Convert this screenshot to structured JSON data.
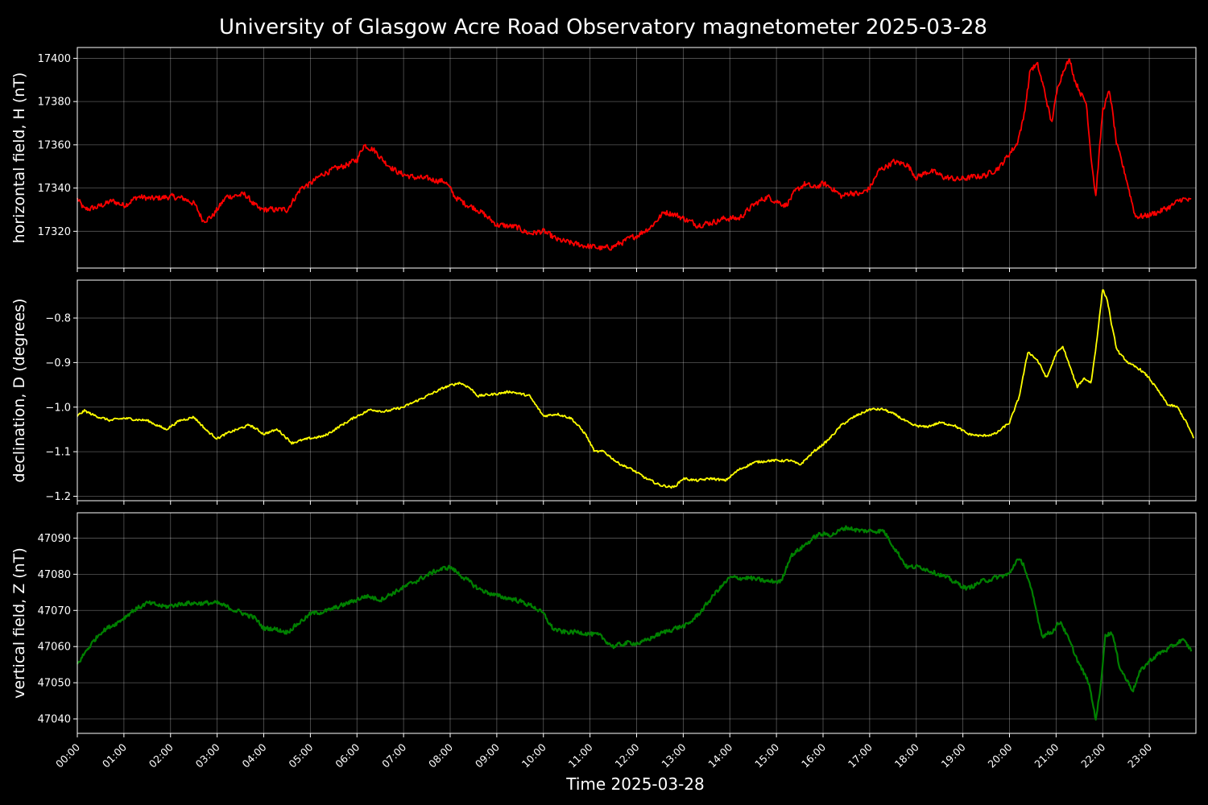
{
  "chart_data": {
    "type": "line",
    "title": "University of Glasgow Acre Road Observatory magnetometer 2025-03-28",
    "xlabel": "Time 2025-03-28",
    "x_tick_labels": [
      "00:00",
      "01:00",
      "02:00",
      "03:00",
      "04:00",
      "05:00",
      "06:00",
      "07:00",
      "08:00",
      "09:00",
      "10:00",
      "11:00",
      "12:00",
      "13:00",
      "14:00",
      "15:00",
      "16:00",
      "17:00",
      "18:00",
      "19:00",
      "20:00",
      "21:00",
      "22:00",
      "23:00"
    ],
    "xlim_hours": [
      0,
      24
    ],
    "grid": true,
    "background": "#000000",
    "panels": [
      {
        "ylabel": "horizontal field, H (nT)",
        "color": "#ff0000",
        "ylim": [
          17303,
          17405
        ],
        "yticks": [
          17320,
          17340,
          17360,
          17380,
          17400
        ],
        "ytick_labels": [
          "17320",
          "17340",
          "17360",
          "17380",
          "17400"
        ],
        "noise": 1.5,
        "series": [
          {
            "x": [
              0,
              0.15,
              0.4,
              0.75,
              1.0,
              1.3,
              1.6,
              2.0,
              2.3,
              2.5,
              2.7,
              2.9,
              3.2,
              3.6,
              3.9,
              4.2,
              4.5,
              4.8,
              5.0,
              5.3,
              5.7,
              6.0,
              6.15,
              6.35,
              6.6,
              6.9,
              7.2,
              7.6,
              7.9,
              8.1,
              8.3,
              8.6,
              9.0,
              9.4,
              9.7,
              10.0,
              10.3,
              10.7,
              11.0,
              11.3,
              11.5,
              11.8,
              12.0,
              12.3,
              12.6,
              12.8,
              13.0,
              13.3,
              13.6,
              13.9,
              14.2,
              14.5,
              14.8,
              15.0,
              15.2,
              15.4,
              15.6,
              15.8,
              16.0,
              16.2,
              16.4,
              16.6,
              16.8,
              17.0,
              17.2,
              17.5,
              17.8,
              18.0,
              18.3,
              18.6,
              18.9,
              19.2,
              19.5,
              19.8,
              20.0,
              20.15,
              20.3,
              20.45,
              20.6,
              20.75,
              20.9,
              21.05,
              21.2,
              21.3,
              21.4,
              21.55,
              21.65,
              21.75,
              21.85,
              22.0,
              22.15,
              22.3,
              22.5,
              22.7,
              22.9,
              23.2,
              23.5,
              23.7,
              23.9
            ],
            "y": [
              17335,
              17330,
              17331,
              17334,
              17332,
              17336,
              17335,
              17336,
              17335,
              17333,
              17325,
              17327,
              17336,
              17337,
              17330,
              17330,
              17330,
              17340,
              17342,
              17347,
              17350,
              17353,
              17360,
              17358,
              17352,
              17347,
              17345,
              17344,
              17343,
              17336,
              17333,
              17330,
              17323,
              17322,
              17319,
              17320,
              17316,
              17314,
              17313,
              17312,
              17313,
              17316,
              17318,
              17322,
              17329,
              17328,
              17326,
              17323,
              17324,
              17326,
              17326,
              17332,
              17336,
              17334,
              17332,
              17338,
              17342,
              17340,
              17342,
              17340,
              17336,
              17338,
              17337,
              17340,
              17348,
              17352,
              17351,
              17345,
              17348,
              17345,
              17344,
              17345,
              17346,
              17350,
              17356,
              17360,
              17372,
              17395,
              17397,
              17385,
              17370,
              17388,
              17397,
              17399,
              17390,
              17383,
              17379,
              17355,
              17336,
              17376,
              17385,
              17360,
              17345,
              17327,
              17327,
              17329,
              17332,
              17335,
              17334
            ]
          }
        ]
      },
      {
        "ylabel": "declination, D (degrees)",
        "color": "#ffff00",
        "ylim": [
          -1.21,
          -0.715
        ],
        "yticks": [
          -1.2,
          -1.1,
          -1.0,
          -0.9,
          -0.8
        ],
        "ytick_labels": [
          "−1.2",
          "−1.1",
          "−1.0",
          "−0.9",
          "−0.8"
        ],
        "noise": 0.003,
        "series": [
          {
            "x": [
              0,
              0.15,
              0.35,
              0.7,
              1.0,
              1.5,
              1.9,
              2.2,
              2.5,
              2.8,
              3.0,
              3.3,
              3.7,
              4.0,
              4.3,
              4.6,
              5.0,
              5.3,
              5.6,
              6.0,
              6.3,
              6.6,
              7.0,
              7.3,
              7.6,
              7.9,
              8.2,
              8.4,
              8.6,
              9.0,
              9.3,
              9.7,
              10.0,
              10.3,
              10.6,
              10.9,
              11.1,
              11.3,
              11.6,
              11.9,
              12.2,
              12.5,
              12.8,
              13.0,
              13.3,
              13.6,
              13.9,
              14.2,
              14.5,
              14.8,
              15.1,
              15.3,
              15.5,
              15.8,
              16.1,
              16.4,
              16.7,
              17.0,
              17.3,
              17.6,
              17.9,
              18.2,
              18.5,
              18.8,
              19.1,
              19.4,
              19.7,
              20.0,
              20.2,
              20.4,
              20.6,
              20.8,
              21.0,
              21.15,
              21.3,
              21.45,
              21.6,
              21.75,
              21.85,
              21.95,
              22.0,
              22.1,
              22.2,
              22.3,
              22.4,
              22.6,
              22.8,
              23.0,
              23.2,
              23.4,
              23.6,
              23.8,
              23.95
            ],
            "y": [
              -1.02,
              -1.008,
              -1.018,
              -1.03,
              -1.025,
              -1.03,
              -1.05,
              -1.03,
              -1.022,
              -1.055,
              -1.07,
              -1.055,
              -1.04,
              -1.06,
              -1.05,
              -1.08,
              -1.07,
              -1.065,
              -1.045,
              -1.02,
              -1.005,
              -1.01,
              -1.0,
              -0.985,
              -0.97,
              -0.955,
              -0.945,
              -0.955,
              -0.975,
              -0.97,
              -0.965,
              -0.975,
              -1.02,
              -1.015,
              -1.025,
              -1.06,
              -1.1,
              -1.1,
              -1.125,
              -1.14,
              -1.16,
              -1.175,
              -1.18,
              -1.16,
              -1.165,
              -1.16,
              -1.165,
              -1.14,
              -1.125,
              -1.12,
              -1.12,
              -1.12,
              -1.13,
              -1.1,
              -1.075,
              -1.04,
              -1.02,
              -1.005,
              -1.005,
              -1.02,
              -1.04,
              -1.045,
              -1.035,
              -1.04,
              -1.06,
              -1.065,
              -1.06,
              -1.035,
              -0.98,
              -0.875,
              -0.895,
              -0.935,
              -0.88,
              -0.865,
              -0.91,
              -0.955,
              -0.935,
              -0.945,
              -0.87,
              -0.78,
              -0.735,
              -0.76,
              -0.82,
              -0.87,
              -0.885,
              -0.905,
              -0.915,
              -0.935,
              -0.965,
              -0.995,
              -1.0,
              -1.035,
              -1.07
            ]
          }
        ]
      },
      {
        "ylabel": "vertical field, Z (nT)",
        "color": "#008000",
        "ylim": [
          47036,
          47097
        ],
        "yticks": [
          47040,
          47050,
          47060,
          47070,
          47080,
          47090
        ],
        "ytick_labels": [
          "47040",
          "47050",
          "47060",
          "47070",
          "47080",
          "47090"
        ],
        "noise": 0.7,
        "series": [
          {
            "x": [
              0,
              0.2,
              0.5,
              0.9,
              1.2,
              1.5,
              1.9,
              2.3,
              2.6,
              3.0,
              3.4,
              3.8,
              4.0,
              4.2,
              4.5,
              4.8,
              5.0,
              5.4,
              5.8,
              6.2,
              6.5,
              6.8,
              7.1,
              7.4,
              7.7,
              8.0,
              8.3,
              8.6,
              9.0,
              9.4,
              9.8,
              10.0,
              10.2,
              10.4,
              10.8,
              11.2,
              11.5,
              11.8,
              12.1,
              12.4,
              12.8,
              13.1,
              13.4,
              13.7,
              14.0,
              14.4,
              14.8,
              15.1,
              15.3,
              15.6,
              15.9,
              16.2,
              16.5,
              16.8,
              17.1,
              17.3,
              17.5,
              17.8,
              18.1,
              18.5,
              18.8,
              19.1,
              19.4,
              19.7,
              20.0,
              20.15,
              20.3,
              20.5,
              20.7,
              20.9,
              21.1,
              21.3,
              21.5,
              21.7,
              21.85,
              21.95,
              22.05,
              22.2,
              22.35,
              22.5,
              22.65,
              22.8,
              23.0,
              23.2,
              23.5,
              23.7,
              23.9
            ],
            "y": [
              47055,
              47059,
              47064,
              47067,
              47070,
              47072,
              47071,
              47072,
              47072,
              47072,
              47070,
              47068,
              47065,
              47065,
              47064,
              47067,
              47069,
              47070,
              47072,
              47074,
              47073,
              47075,
              47077,
              47079,
              47081,
              47082,
              47079,
              47076,
              47074,
              47073,
              47071,
              47069,
              47065,
              47064,
              47064,
              47063,
              47060,
              47061,
              47061,
              47063,
              47065,
              47066,
              47070,
              47075,
              47079,
              47079,
              47078,
              47078,
              47085,
              47088,
              47091,
              47091,
              47093,
              47092,
              47092,
              47092,
              47088,
              47082,
              47082,
              47080,
              47078,
              47076,
              47078,
              47079,
              47080,
              47084,
              47083,
              47074,
              47063,
              47064,
              47067,
              47061,
              47055,
              47050,
              47040,
              47048,
              47063,
              47064,
              47055,
              47051,
              47048,
              47053,
              47056,
              47058,
              47060,
              47062,
              47059
            ]
          }
        ]
      }
    ]
  }
}
